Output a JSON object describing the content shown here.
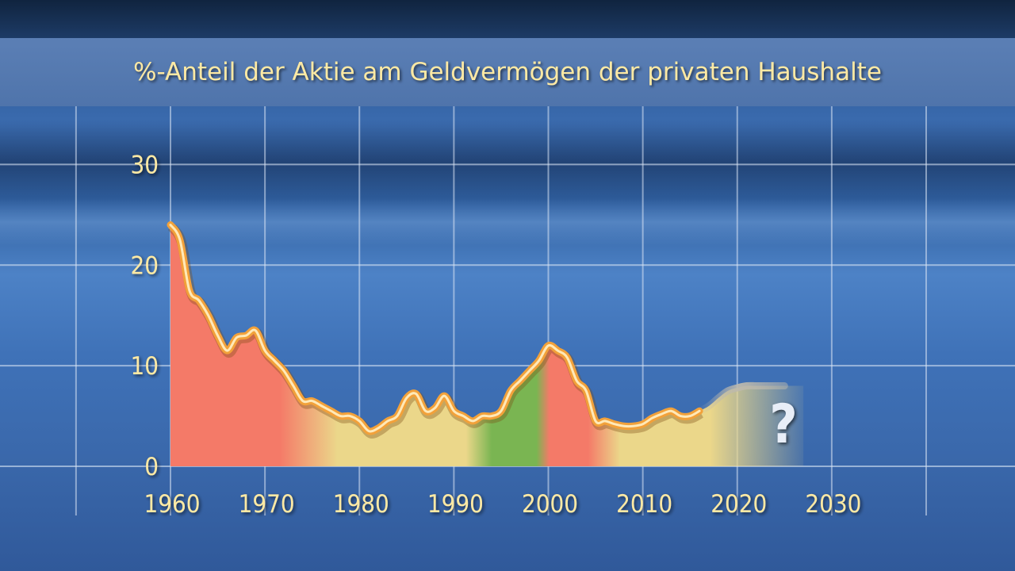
{
  "chart_data": {
    "type": "area",
    "title": "%-Anteil der Aktie am Geldvermögen der privaten Haushalte",
    "xlabel": "",
    "ylabel": "",
    "xlim": [
      1960,
      2040
    ],
    "ylim": [
      0,
      35
    ],
    "grid": true,
    "x_ticks": [
      1960,
      1970,
      1980,
      1990,
      2000,
      2010,
      2020,
      2030
    ],
    "y_ticks": [
      0,
      10,
      20,
      30
    ],
    "x": [
      1960,
      1961,
      1962,
      1963,
      1964,
      1965,
      1966,
      1967,
      1968,
      1969,
      1970,
      1971,
      1972,
      1973,
      1974,
      1975,
      1976,
      1977,
      1978,
      1979,
      1980,
      1981,
      1982,
      1983,
      1984,
      1985,
      1986,
      1987,
      1988,
      1989,
      1990,
      1991,
      1992,
      1993,
      1994,
      1995,
      1996,
      1997,
      1998,
      1999,
      2000,
      2001,
      2002,
      2003,
      2004,
      2005,
      2006,
      2007,
      2008,
      2009,
      2010,
      2011,
      2012,
      2013,
      2014,
      2015,
      2016,
      2017,
      2018,
      2019,
      2020,
      2021,
      2022,
      2023
    ],
    "values": [
      24.0,
      22.5,
      17.5,
      16.5,
      15.0,
      13.0,
      11.5,
      12.8,
      13.0,
      13.5,
      11.5,
      10.5,
      9.5,
      8.0,
      6.5,
      6.5,
      6.0,
      5.5,
      5.0,
      5.0,
      4.5,
      3.5,
      3.8,
      4.5,
      5.0,
      6.8,
      7.2,
      5.5,
      5.8,
      7.0,
      5.5,
      5.0,
      4.5,
      5.0,
      5.0,
      5.5,
      7.5,
      8.5,
      9.5,
      10.5,
      12.0,
      11.5,
      10.8,
      8.5,
      7.5,
      4.5,
      4.5,
      4.2,
      4.0,
      4.0,
      4.2,
      4.8,
      5.2,
      5.5,
      5.0,
      5.0,
      5.5,
      6.0,
      6.8,
      7.5,
      7.8,
      8.0,
      8.0,
      8.0
    ],
    "projection_x": [
      2015,
      2016,
      2017,
      2018,
      2019,
      2020,
      2021,
      2022,
      2023,
      2024,
      2025
    ],
    "projection_values": [
      5.0,
      5.5,
      6.0,
      6.8,
      7.5,
      7.8,
      8.0,
      8.0,
      8.0,
      8.0,
      8.0
    ],
    "annotations": [
      "?"
    ],
    "colors": {
      "line": "#f2a13a",
      "line_glow": "#ffe9b8",
      "area_red": "#f47a68",
      "area_yellow": "#ebd78a",
      "area_green": "#7ab552",
      "projection": "#bdb9ad",
      "grid": "#d9e4f4",
      "text": "#fde9a4"
    }
  }
}
